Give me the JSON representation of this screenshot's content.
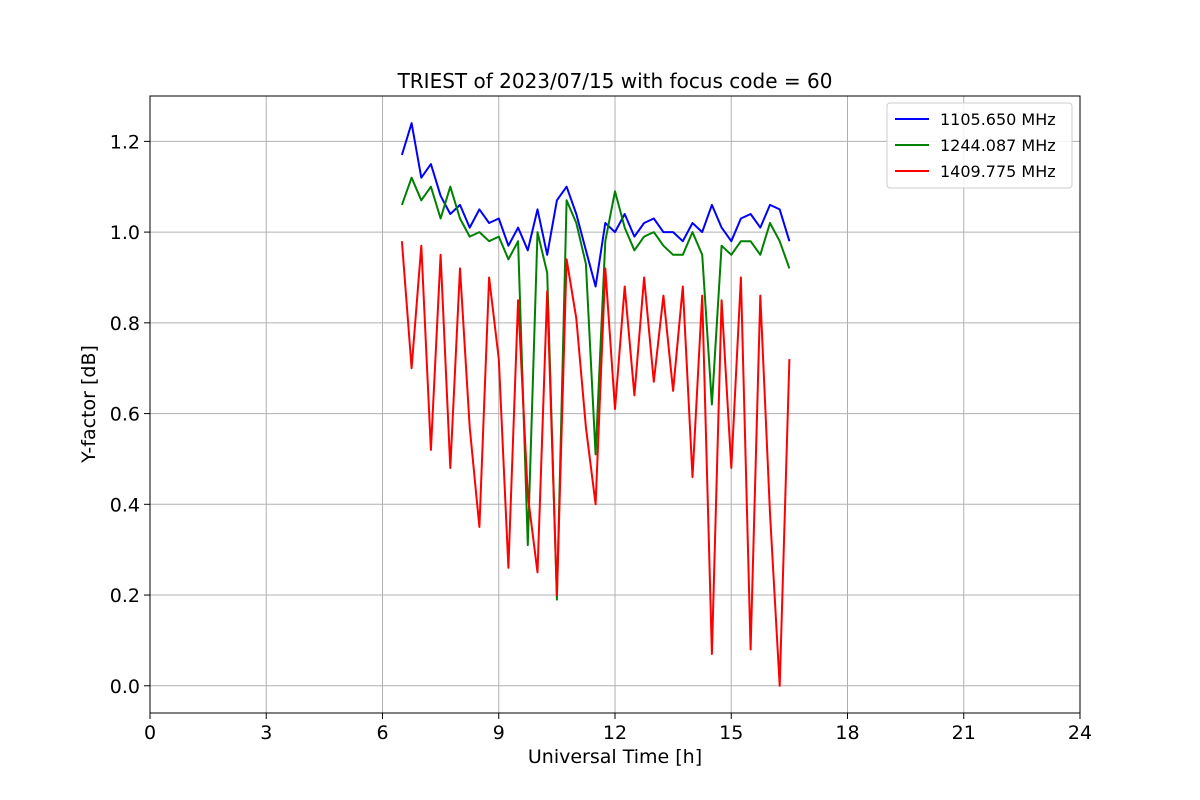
{
  "chart_data": {
    "type": "line",
    "title": "TRIEST of 2023/07/15 with focus code = 60",
    "xlabel": "Universal Time [h]",
    "ylabel": "Y-factor [dB]",
    "xlim": [
      0,
      24
    ],
    "ylim": [
      -0.06,
      1.3
    ],
    "xticks": [
      0,
      3,
      6,
      9,
      12,
      15,
      18,
      21,
      24
    ],
    "yticks": [
      0.0,
      0.2,
      0.4,
      0.6,
      0.8,
      1.0,
      1.2
    ],
    "xtick_labels": [
      "0",
      "3",
      "6",
      "9",
      "12",
      "15",
      "18",
      "21",
      "24"
    ],
    "ytick_labels": [
      "0.0",
      "0.2",
      "0.4",
      "0.6",
      "0.8",
      "1.0",
      "1.2"
    ],
    "grid": true,
    "legend_position": "top-right",
    "series": [
      {
        "name": "1105.650 MHz",
        "color": "#0000ff",
        "x": [
          6.5,
          6.75,
          7.0,
          7.25,
          7.5,
          7.75,
          8.0,
          8.25,
          8.5,
          8.75,
          9.0,
          9.25,
          9.5,
          9.75,
          10.0,
          10.25,
          10.5,
          10.75,
          11.0,
          11.25,
          11.5,
          11.75,
          12.0,
          12.25,
          12.5,
          12.75,
          13.0,
          13.25,
          13.5,
          13.75,
          14.0,
          14.25,
          14.5,
          14.75,
          15.0,
          15.25,
          15.5,
          15.75,
          16.0,
          16.25,
          16.5
        ],
        "y": [
          1.17,
          1.24,
          1.12,
          1.15,
          1.08,
          1.04,
          1.06,
          1.01,
          1.05,
          1.02,
          1.03,
          0.97,
          1.01,
          0.96,
          1.05,
          0.95,
          1.07,
          1.1,
          1.04,
          0.96,
          0.88,
          1.02,
          1.0,
          1.04,
          0.99,
          1.02,
          1.03,
          1.0,
          1.0,
          0.98,
          1.02,
          1.0,
          1.06,
          1.01,
          0.98,
          1.03,
          1.04,
          1.01,
          1.06,
          1.05,
          0.98
        ]
      },
      {
        "name": "1244.087 MHz",
        "color": "#008000",
        "x": [
          6.5,
          6.75,
          7.0,
          7.25,
          7.5,
          7.75,
          8.0,
          8.25,
          8.5,
          8.75,
          9.0,
          9.25,
          9.5,
          9.75,
          10.0,
          10.25,
          10.5,
          10.75,
          11.0,
          11.25,
          11.5,
          11.75,
          12.0,
          12.25,
          12.5,
          12.75,
          13.0,
          13.25,
          13.5,
          13.75,
          14.0,
          14.25,
          14.5,
          14.75,
          15.0,
          15.25,
          15.5,
          15.75,
          16.0,
          16.25,
          16.5
        ],
        "y": [
          1.06,
          1.12,
          1.07,
          1.1,
          1.03,
          1.1,
          1.03,
          0.99,
          1.0,
          0.98,
          0.99,
          0.94,
          0.98,
          0.31,
          1.0,
          0.91,
          0.19,
          1.07,
          1.02,
          0.93,
          0.51,
          0.98,
          1.09,
          1.01,
          0.96,
          0.99,
          1.0,
          0.97,
          0.95,
          0.95,
          1.0,
          0.95,
          0.62,
          0.97,
          0.95,
          0.98,
          0.98,
          0.95,
          1.02,
          0.98,
          0.92
        ]
      },
      {
        "name": "1409.775 MHz",
        "color": "#ff0000",
        "x": [
          6.5,
          6.75,
          7.0,
          7.25,
          7.5,
          7.75,
          8.0,
          8.25,
          8.5,
          8.75,
          9.0,
          9.25,
          9.5,
          9.75,
          10.0,
          10.25,
          10.5,
          10.75,
          11.0,
          11.25,
          11.5,
          11.75,
          12.0,
          12.25,
          12.5,
          12.75,
          13.0,
          13.25,
          13.5,
          13.75,
          14.0,
          14.25,
          14.5,
          14.75,
          15.0,
          15.25,
          15.5,
          15.75,
          16.0,
          16.25,
          16.5
        ],
        "y": [
          0.98,
          0.7,
          0.97,
          0.52,
          0.95,
          0.48,
          0.92,
          0.57,
          0.35,
          0.9,
          0.72,
          0.26,
          0.85,
          0.42,
          0.25,
          0.87,
          0.2,
          0.94,
          0.81,
          0.57,
          0.4,
          0.92,
          0.61,
          0.88,
          0.64,
          0.9,
          0.67,
          0.86,
          0.65,
          0.88,
          0.46,
          0.86,
          0.07,
          0.85,
          0.48,
          0.9,
          0.08,
          0.86,
          0.38,
          0.0,
          0.72
        ]
      }
    ]
  }
}
